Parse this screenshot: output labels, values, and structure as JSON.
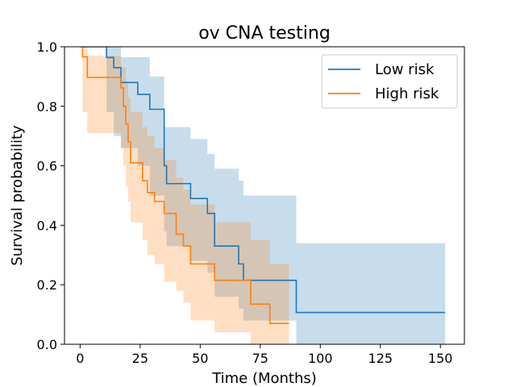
{
  "chart_data": {
    "type": "line",
    "title": "ov CNA testing",
    "xlabel": "Time (Months)",
    "ylabel": "Survival probability",
    "xlim": [
      -6.5,
      160
    ],
    "ylim": [
      0,
      1
    ],
    "xticks": [
      0,
      25,
      50,
      75,
      100,
      125,
      150
    ],
    "yticks": [
      0.0,
      0.2,
      0.4,
      0.6,
      0.8,
      1.0
    ],
    "ytick_labels": [
      "0.0",
      "0.2",
      "0.4",
      "0.6",
      "0.8",
      "1.0"
    ],
    "grid": false,
    "legend_position": "top-right",
    "series": [
      {
        "name": "Low risk",
        "color": "#1f77b4",
        "band_color": "#1f77b4",
        "step_x": [
          0,
          11,
          14,
          17,
          24,
          29,
          35,
          36,
          41,
          46,
          53,
          56,
          66,
          68,
          90,
          152
        ],
        "step_y": [
          1.0,
          0.964,
          0.93,
          0.88,
          0.84,
          0.79,
          0.6,
          0.54,
          0.54,
          0.49,
          0.44,
          0.33,
          0.27,
          0.215,
          0.107,
          0.107
        ],
        "upper": [
          1.0,
          1.0,
          1.0,
          0.965,
          0.965,
          0.9,
          0.73,
          0.73,
          0.73,
          0.69,
          0.64,
          0.59,
          0.55,
          0.5,
          0.34,
          0.34
        ],
        "lower": [
          1.0,
          0.78,
          0.7,
          0.66,
          0.6,
          0.5,
          0.38,
          0.33,
          0.33,
          0.28,
          0.24,
          0.16,
          0.12,
          0.08,
          0.0,
          0.0
        ]
      },
      {
        "name": "High risk",
        "color": "#ff7f0e",
        "band_color": "#ff7f0e",
        "step_x": [
          0,
          1,
          3,
          17,
          18,
          19,
          20,
          21,
          26,
          28,
          31,
          35,
          40,
          43,
          46,
          53,
          56,
          71,
          79,
          87
        ],
        "step_y": [
          1.0,
          0.966,
          0.897,
          0.862,
          0.8,
          0.74,
          0.68,
          0.61,
          0.55,
          0.51,
          0.48,
          0.44,
          0.37,
          0.33,
          0.27,
          0.27,
          0.215,
          0.135,
          0.07,
          0.07
        ],
        "upper": [
          1.0,
          1.0,
          0.97,
          0.93,
          0.93,
          0.88,
          0.83,
          0.78,
          0.73,
          0.7,
          0.66,
          0.62,
          0.56,
          0.52,
          0.47,
          0.47,
          0.41,
          0.35,
          0.27,
          0.27
        ],
        "lower": [
          1.0,
          0.78,
          0.71,
          0.66,
          0.6,
          0.53,
          0.48,
          0.41,
          0.35,
          0.3,
          0.27,
          0.21,
          0.18,
          0.14,
          0.08,
          0.08,
          0.04,
          0.0,
          0.0,
          0.0
        ]
      }
    ]
  }
}
